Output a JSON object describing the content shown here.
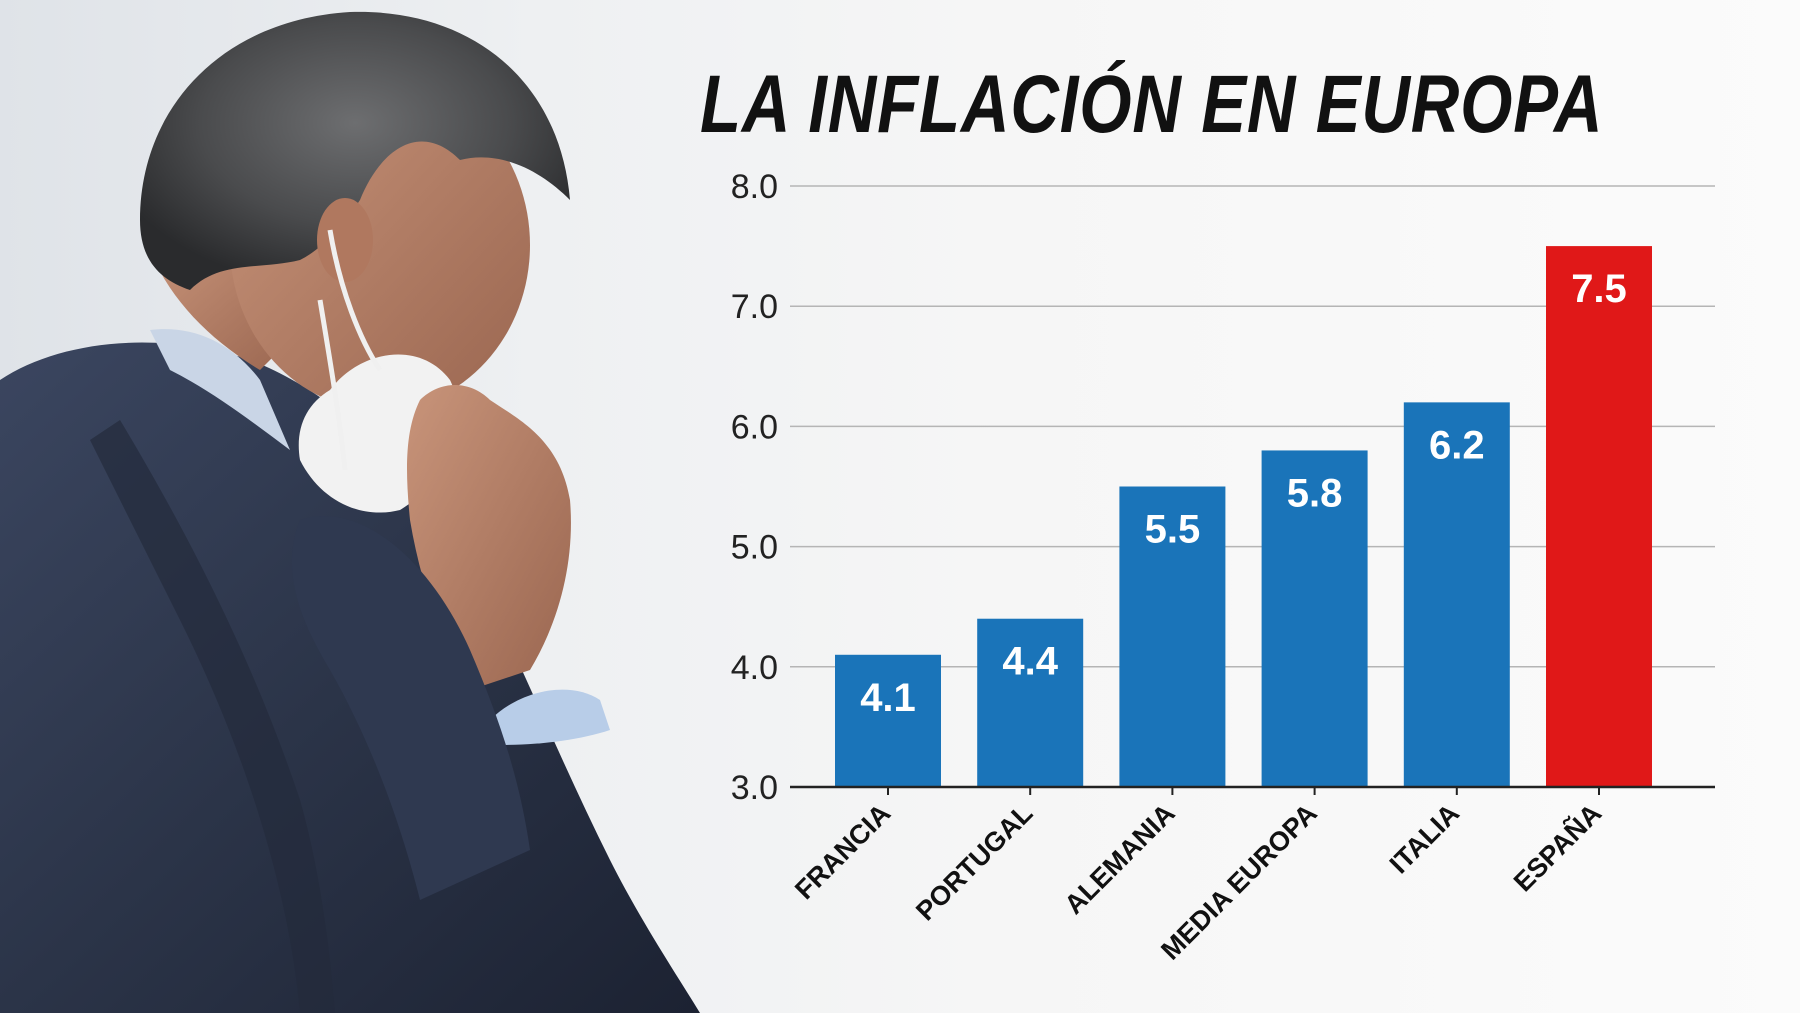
{
  "chart_data": {
    "type": "bar",
    "title": "LA INFLACIÓN EN EUROPA",
    "xlabel": "",
    "ylabel": "",
    "categories": [
      "FRANCIA",
      "PORTUGAL",
      "ALEMANIA",
      "MEDIA EUROPA",
      "ITALIA",
      "ESPAÑA"
    ],
    "values": [
      4.1,
      4.4,
      5.5,
      5.8,
      6.2,
      7.5
    ],
    "value_labels": [
      "4.1",
      "4.4",
      "5.5",
      "5.8",
      "6.2",
      "7.5"
    ],
    "ylim": [
      3.0,
      8.0
    ],
    "yticks": [
      "3.0",
      "4.0",
      "5.0",
      "6.0",
      "7.0",
      "8.0"
    ],
    "grid": true,
    "legend": "none",
    "colors": {
      "default_bar": "#1a74b9",
      "highlight_bar": "#e01818",
      "highlight_category": "ESPAÑA",
      "gridline": "#b5b5b5",
      "axis": "#222222"
    }
  },
  "photo": {
    "subject_icon": "man-in-suit-with-face-mask-photo"
  }
}
